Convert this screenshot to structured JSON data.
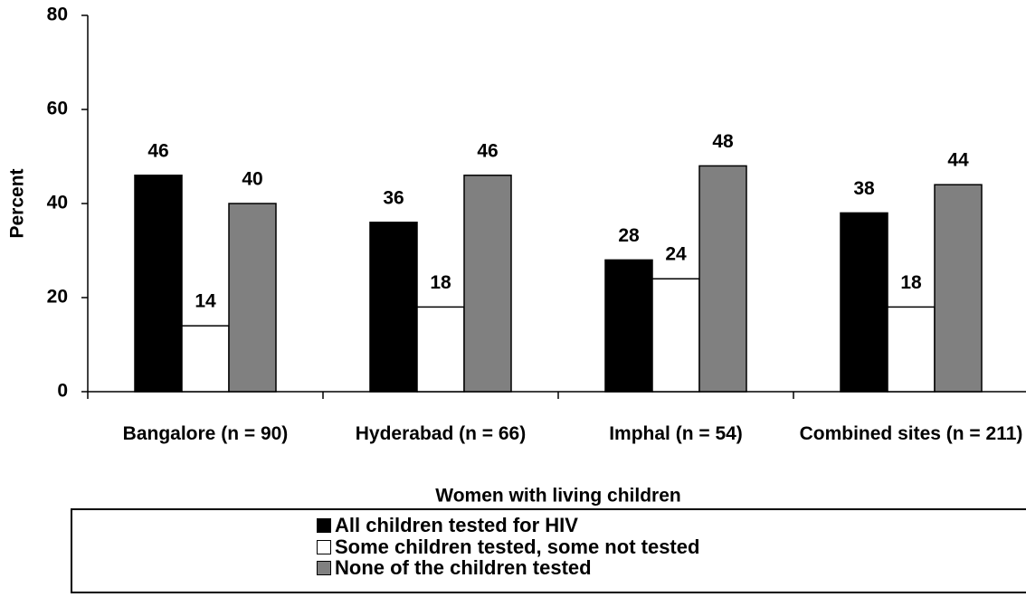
{
  "chart_data": {
    "type": "bar",
    "y_label": "Percent",
    "x_label": "Women with living children",
    "categories": [
      "Bangalore (n = 90)",
      "Hyderabad (n = 66)",
      "Imphal (n = 54)",
      "Combined sites (n = 211)"
    ],
    "series": [
      {
        "name": "All children tested for HIV",
        "color": "#000000",
        "values": [
          46,
          36,
          28,
          38
        ]
      },
      {
        "name": "Some children tested, some not tested",
        "color": "#ffffff",
        "values": [
          14,
          18,
          24,
          18
        ]
      },
      {
        "name": "None of the children tested",
        "color": "#808080",
        "values": [
          40,
          46,
          48,
          44
        ]
      }
    ],
    "ylim": [
      0,
      80
    ],
    "yticks": [
      0,
      20,
      40,
      60,
      80
    ],
    "grid": false,
    "legend": "bottom"
  }
}
